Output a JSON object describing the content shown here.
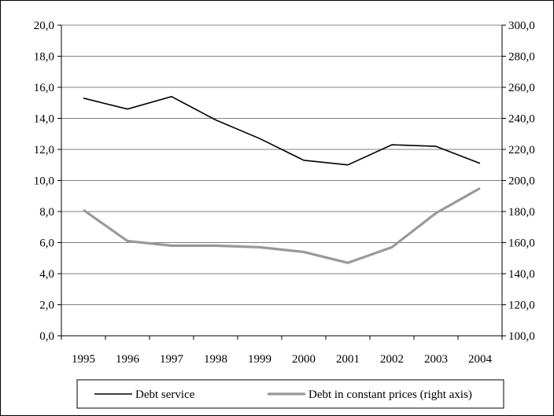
{
  "chart_data": {
    "type": "line",
    "title": "",
    "xlabel": "",
    "ylabel": "",
    "categories": [
      "1995",
      "1996",
      "1997",
      "1998",
      "1999",
      "2000",
      "2001",
      "2002",
      "2003",
      "2004"
    ],
    "ylim": [
      0,
      20
    ],
    "y2lim": [
      100,
      300
    ],
    "yticks": [
      "0,0",
      "2,0",
      "4,0",
      "6,0",
      "8,0",
      "10,0",
      "12,0",
      "14,0",
      "16,0",
      "18,0",
      "20,0"
    ],
    "y2ticks": [
      "100,0",
      "120,0",
      "140,0",
      "160,0",
      "180,0",
      "200,0",
      "220,0",
      "240,0",
      "260,0",
      "280,0",
      "300,0"
    ],
    "grid": true,
    "legend_position": "bottom",
    "series": [
      {
        "name": "Debt service",
        "axis": "left",
        "color": "#000000",
        "values": [
          15.3,
          14.6,
          15.4,
          13.9,
          12.7,
          11.3,
          11.0,
          12.3,
          12.2,
          11.1
        ]
      },
      {
        "name": "Debt in constant prices (right axis)",
        "axis": "right",
        "color": "#999999",
        "values": [
          181,
          161,
          158,
          158,
          157,
          154,
          147,
          157,
          179,
          195
        ]
      }
    ]
  }
}
